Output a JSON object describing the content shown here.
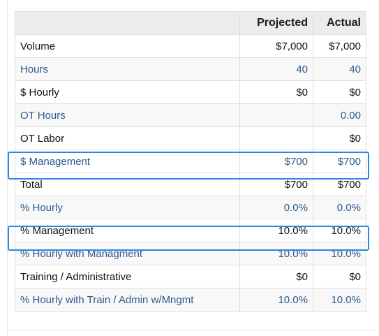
{
  "header": {
    "projected": "Projected",
    "actual": "Actual"
  },
  "rows": [
    {
      "label": "Volume",
      "projected": "$7,000",
      "actual": "$7,000"
    },
    {
      "label": "Hours",
      "projected": "40",
      "actual": "40"
    },
    {
      "label": "$ Hourly",
      "projected": "$0",
      "actual": "$0"
    },
    {
      "label": "OT Hours",
      "projected": "",
      "actual": "0.00"
    },
    {
      "label": "OT Labor",
      "projected": "",
      "actual": "$0"
    },
    {
      "label": "$ Management",
      "projected": "$700",
      "actual": "$700"
    },
    {
      "label": "Total",
      "projected": "$700",
      "actual": "$700"
    },
    {
      "label": "% Hourly",
      "projected": "0.0%",
      "actual": "0.0%"
    },
    {
      "label": "% Management",
      "projected": "10.0%",
      "actual": "10.0%"
    },
    {
      "label": "% Hourly with Managment",
      "projected": "10.0%",
      "actual": "10.0%"
    },
    {
      "label": "Training / Administrative",
      "projected": "$0",
      "actual": "$0"
    },
    {
      "label": "% Hourly with Train / Admin w/Mngmt",
      "projected": "10.0%",
      "actual": "10.0%"
    }
  ],
  "colors": {
    "highlight": "#2f86e0",
    "link_text": "#2b5a8d",
    "header_bg": "#ececec"
  }
}
